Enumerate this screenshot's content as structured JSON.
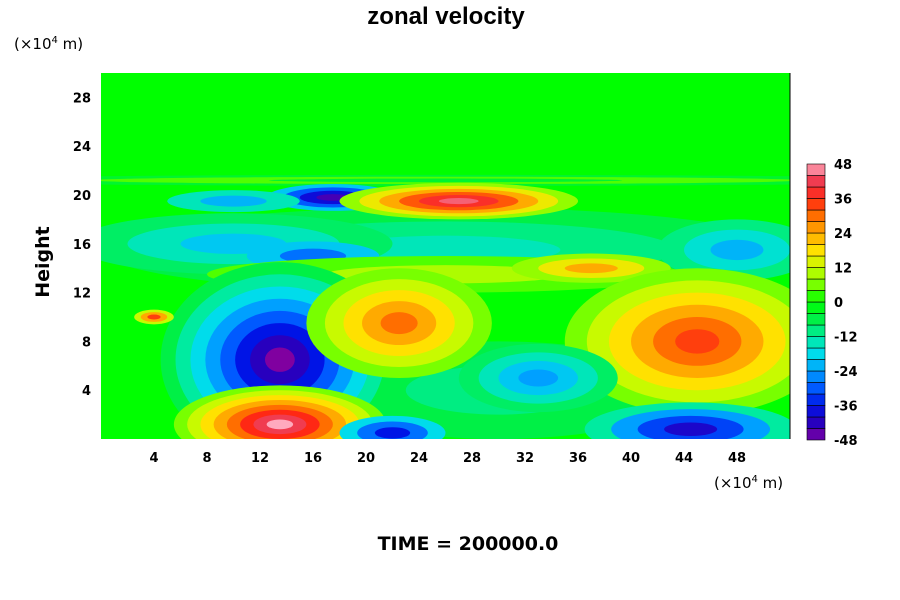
{
  "chart_data": {
    "type": "heatmap",
    "title": "zonal velocity",
    "ylabel": "Height",
    "x_unit": {
      "prefix": "(×10",
      "exp": "4",
      "suffix": " m)"
    },
    "y_unit": {
      "prefix": "(×10",
      "exp": "4",
      "suffix": " m)"
    },
    "xlim": [
      0,
      52
    ],
    "ylim": [
      0,
      30
    ],
    "x_ticks": [
      4,
      8,
      12,
      16,
      20,
      24,
      28,
      32,
      36,
      40,
      44,
      48
    ],
    "y_ticks": [
      4,
      8,
      12,
      16,
      20,
      24,
      28
    ],
    "colorbar": {
      "min": -48,
      "max": 48,
      "step": 4,
      "ticks": [
        48,
        36,
        24,
        12,
        0,
        -12,
        -24,
        -36,
        -48
      ]
    },
    "grid": false,
    "features": [
      {
        "desc": "strong westward jet",
        "x": 13.5,
        "y": 6.5,
        "value": -48
      },
      {
        "desc": "strong eastward core near surface",
        "x": 13.5,
        "y": 1.2,
        "value": 48
      },
      {
        "desc": "eastward maximum near tropopause",
        "x": 27,
        "y": 19.5,
        "value": 44
      },
      {
        "desc": "westward patch near tropopause",
        "x": 17.5,
        "y": 19.8,
        "value": -44
      },
      {
        "desc": "eastward patch",
        "x": 22.5,
        "y": 9.5,
        "value": 30
      },
      {
        "desc": "eastward patch",
        "x": 45,
        "y": 8,
        "value": 34
      },
      {
        "desc": "westward patch near surface",
        "x": 44.5,
        "y": 0.8,
        "value": -40
      },
      {
        "desc": "westward patch near surface",
        "x": 22,
        "y": 0.5,
        "value": -36
      },
      {
        "desc": "westward patch",
        "x": 33,
        "y": 5,
        "value": -24
      }
    ]
  },
  "footer": {
    "time_label": "TIME = 200000.0"
  }
}
